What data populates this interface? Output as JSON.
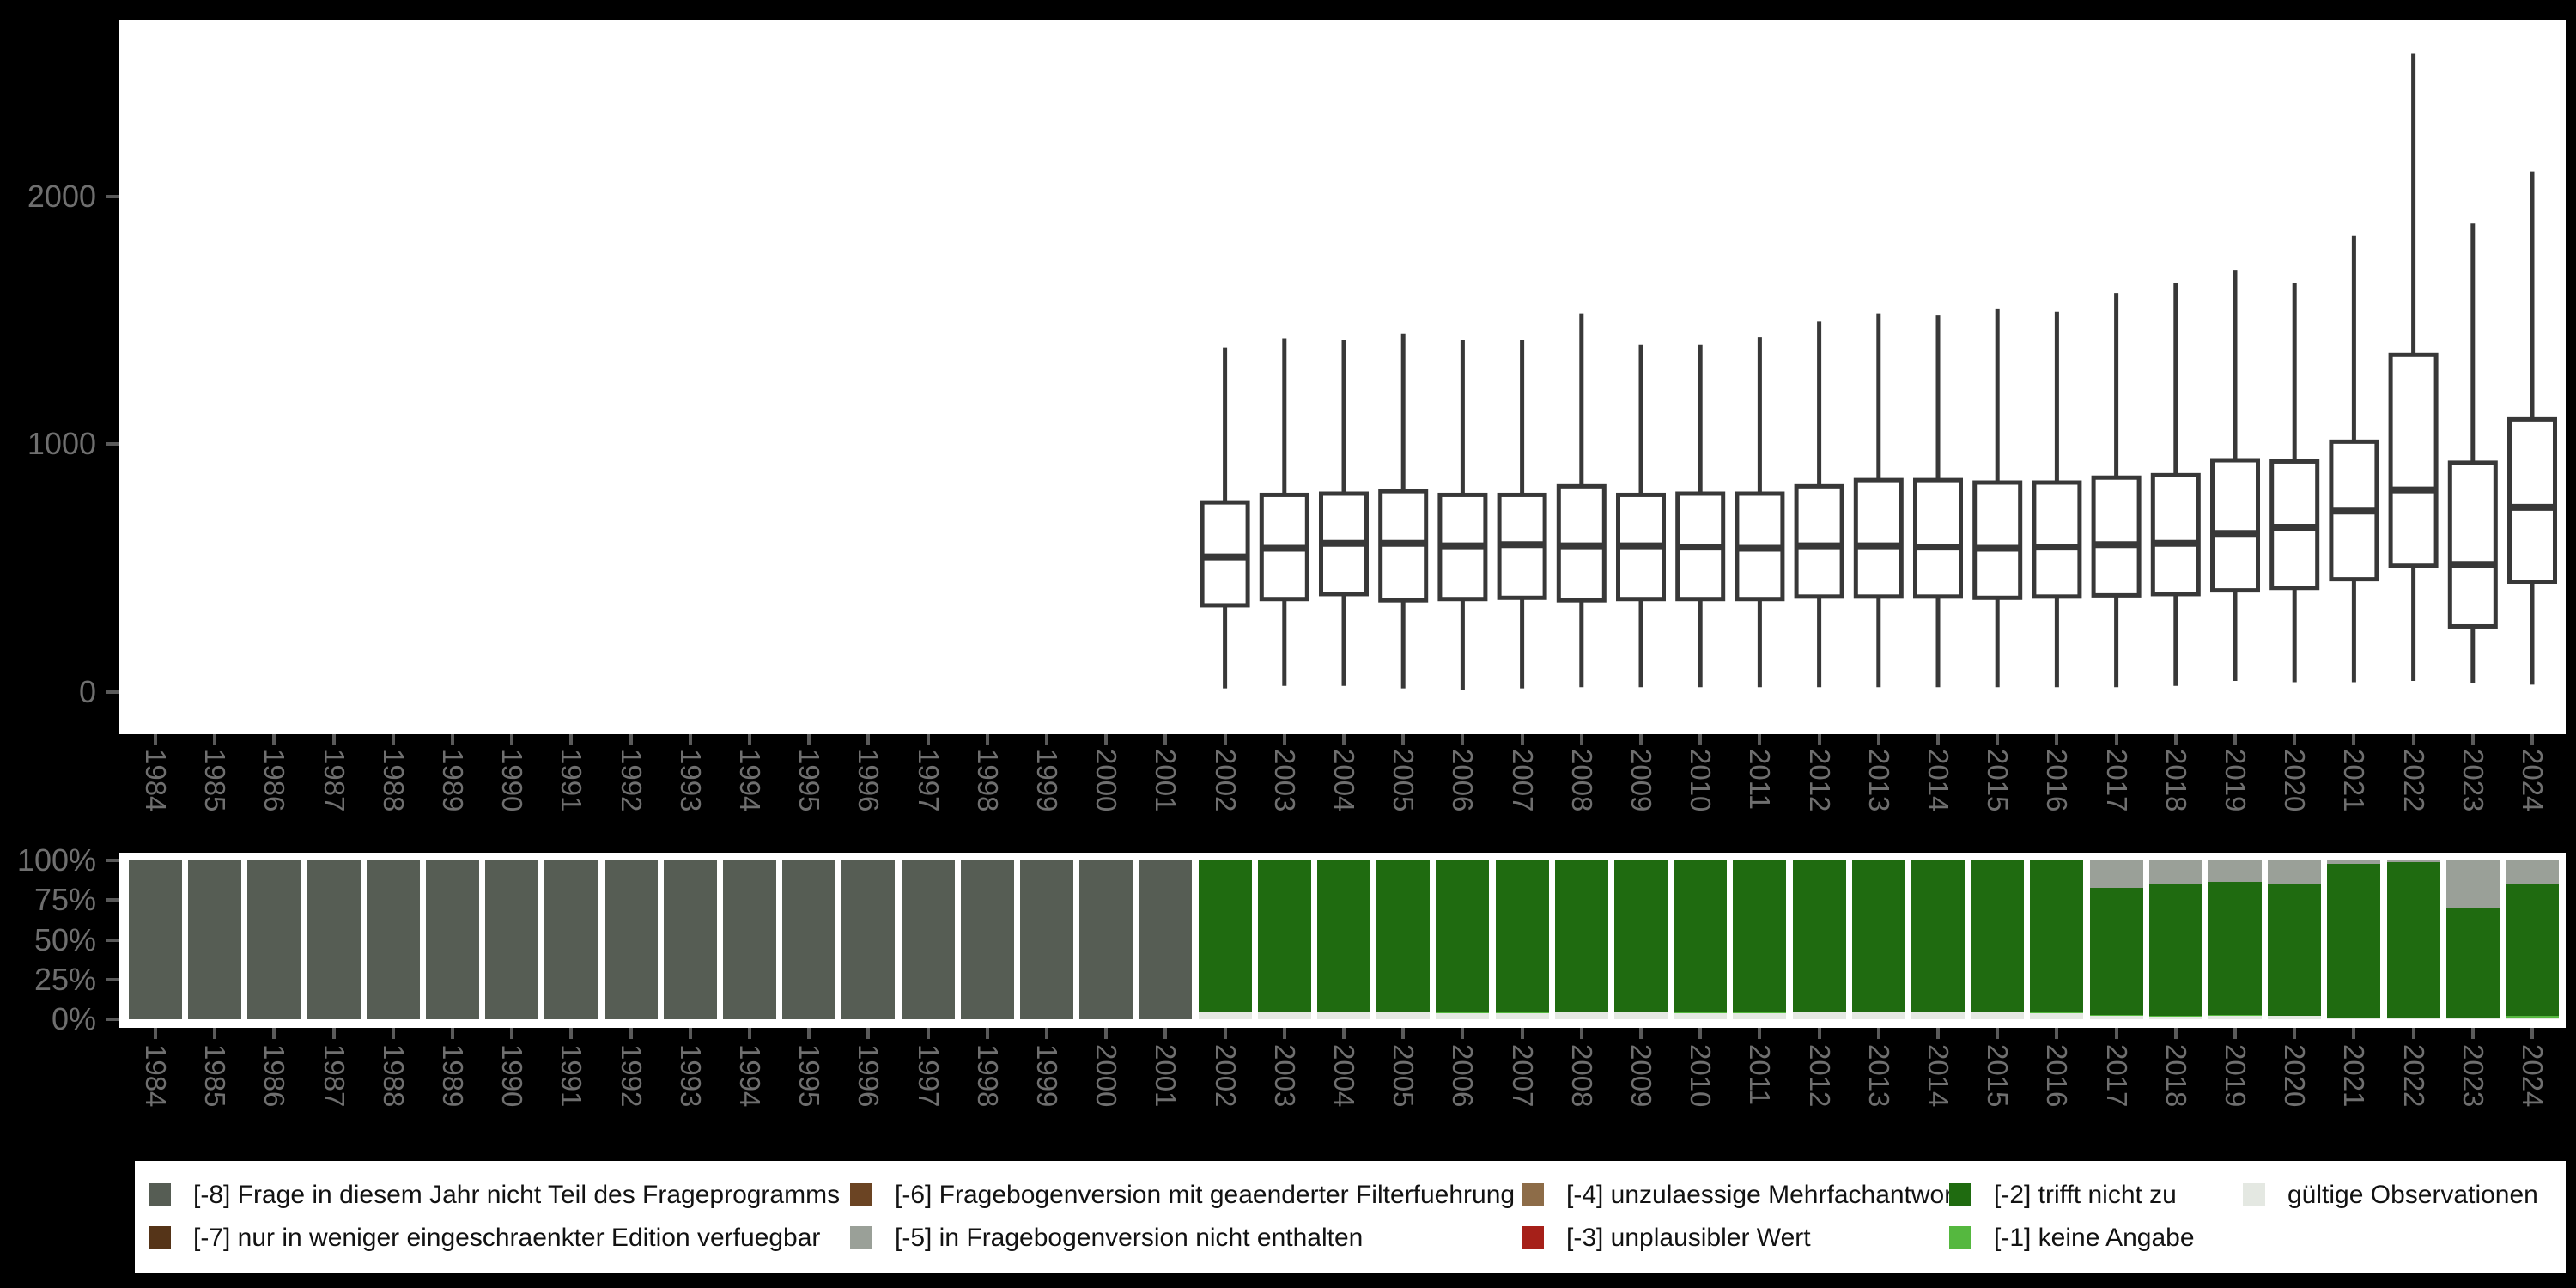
{
  "colors": {
    "background": "#000000",
    "panel": "#ffffff",
    "box_stroke": "#383838",
    "axis_label": "#6f6f6f",
    "tick": "#5a5a5a",
    "palette": {
      "-8": "#565d54",
      "-7": "#553418",
      "-6": "#6b4423",
      "-5": "#9aa098",
      "-4": "#8d6c48",
      "-3": "#a62019",
      "-2": "#1f6b10",
      "-1": "#55b83f",
      "valid": "#e4e8e2"
    }
  },
  "years": [
    "1984",
    "1985",
    "1986",
    "1987",
    "1988",
    "1989",
    "1990",
    "1991",
    "1992",
    "1993",
    "1994",
    "1995",
    "1996",
    "1997",
    "1998",
    "1999",
    "2000",
    "2001",
    "2002",
    "2003",
    "2004",
    "2005",
    "2006",
    "2007",
    "2008",
    "2009",
    "2010",
    "2011",
    "2012",
    "2013",
    "2014",
    "2015",
    "2016",
    "2017",
    "2018",
    "2019",
    "2020",
    "2021",
    "2022",
    "2023",
    "2024"
  ],
  "top_chart": {
    "y_ticks": [
      {
        "label": "0",
        "value": 0
      },
      {
        "label": "1000",
        "value": 1000
      },
      {
        "label": "2000",
        "value": 2000
      }
    ]
  },
  "bottom_chart": {
    "y_ticks": [
      {
        "label": "100%",
        "value": 100
      },
      {
        "label": "75%",
        "value": 75
      },
      {
        "label": "50%",
        "value": 50
      },
      {
        "label": "25%",
        "value": 25
      },
      {
        "label": "0%",
        "value": 0
      }
    ]
  },
  "chart_data": [
    {
      "type": "boxplot",
      "title": "",
      "xlabel": "",
      "ylabel": "",
      "ylim": [
        0,
        2700
      ],
      "y_tick_values": [
        0,
        1000,
        2000
      ],
      "note": "boxplots of valid observation values per survey year; no data 1984-2001",
      "series": [
        {
          "year": 2002,
          "low": 15,
          "q1": 350,
          "median": 545,
          "q3": 765,
          "high": 1390
        },
        {
          "year": 2003,
          "low": 25,
          "q1": 375,
          "median": 580,
          "q3": 795,
          "high": 1425
        },
        {
          "year": 2004,
          "low": 25,
          "q1": 395,
          "median": 600,
          "q3": 800,
          "high": 1420
        },
        {
          "year": 2005,
          "low": 15,
          "q1": 370,
          "median": 600,
          "q3": 810,
          "high": 1445
        },
        {
          "year": 2006,
          "low": 10,
          "q1": 375,
          "median": 590,
          "q3": 795,
          "high": 1420
        },
        {
          "year": 2007,
          "low": 15,
          "q1": 380,
          "median": 595,
          "q3": 795,
          "high": 1420
        },
        {
          "year": 2008,
          "low": 20,
          "q1": 370,
          "median": 590,
          "q3": 830,
          "high": 1525
        },
        {
          "year": 2009,
          "low": 20,
          "q1": 375,
          "median": 590,
          "q3": 795,
          "high": 1400
        },
        {
          "year": 2010,
          "low": 20,
          "q1": 375,
          "median": 585,
          "q3": 800,
          "high": 1400
        },
        {
          "year": 2011,
          "low": 20,
          "q1": 375,
          "median": 580,
          "q3": 800,
          "high": 1430
        },
        {
          "year": 2012,
          "low": 20,
          "q1": 385,
          "median": 590,
          "q3": 830,
          "high": 1495
        },
        {
          "year": 2013,
          "low": 20,
          "q1": 385,
          "median": 590,
          "q3": 855,
          "high": 1525
        },
        {
          "year": 2014,
          "low": 20,
          "q1": 385,
          "median": 585,
          "q3": 855,
          "high": 1520
        },
        {
          "year": 2015,
          "low": 20,
          "q1": 380,
          "median": 580,
          "q3": 845,
          "high": 1545
        },
        {
          "year": 2016,
          "low": 20,
          "q1": 385,
          "median": 585,
          "q3": 845,
          "high": 1535
        },
        {
          "year": 2017,
          "low": 20,
          "q1": 390,
          "median": 595,
          "q3": 865,
          "high": 1610
        },
        {
          "year": 2018,
          "low": 25,
          "q1": 395,
          "median": 600,
          "q3": 875,
          "high": 1650
        },
        {
          "year": 2019,
          "low": 45,
          "q1": 410,
          "median": 640,
          "q3": 935,
          "high": 1700
        },
        {
          "year": 2020,
          "low": 40,
          "q1": 420,
          "median": 665,
          "q3": 930,
          "high": 1650
        },
        {
          "year": 2021,
          "low": 40,
          "q1": 455,
          "median": 730,
          "q3": 1010,
          "high": 1840
        },
        {
          "year": 2022,
          "low": 45,
          "q1": 510,
          "median": 815,
          "q3": 1360,
          "high": 2575
        },
        {
          "year": 2023,
          "low": 35,
          "q1": 265,
          "median": 515,
          "q3": 925,
          "high": 1890
        },
        {
          "year": 2024,
          "low": 30,
          "q1": 445,
          "median": 745,
          "q3": 1100,
          "high": 2100
        }
      ]
    },
    {
      "type": "bar",
      "stacked": true,
      "unit": "percent",
      "title": "",
      "xlabel": "",
      "ylabel": "",
      "ylim": [
        0,
        100
      ],
      "y_tick_values": [
        0,
        25,
        50,
        75,
        100
      ],
      "note": "share of missing codes vs valid observations per year; segments listed bottom-to-top",
      "bars": [
        {
          "year": 1984,
          "segments": [
            {
              "code": "-8",
              "pct": 100
            }
          ]
        },
        {
          "year": 1985,
          "segments": [
            {
              "code": "-8",
              "pct": 100
            }
          ]
        },
        {
          "year": 1986,
          "segments": [
            {
              "code": "-8",
              "pct": 100
            }
          ]
        },
        {
          "year": 1987,
          "segments": [
            {
              "code": "-8",
              "pct": 100
            }
          ]
        },
        {
          "year": 1988,
          "segments": [
            {
              "code": "-8",
              "pct": 100
            }
          ]
        },
        {
          "year": 1989,
          "segments": [
            {
              "code": "-8",
              "pct": 100
            }
          ]
        },
        {
          "year": 1990,
          "segments": [
            {
              "code": "-8",
              "pct": 100
            }
          ]
        },
        {
          "year": 1991,
          "segments": [
            {
              "code": "-8",
              "pct": 100
            }
          ]
        },
        {
          "year": 1992,
          "segments": [
            {
              "code": "-8",
              "pct": 100
            }
          ]
        },
        {
          "year": 1993,
          "segments": [
            {
              "code": "-8",
              "pct": 100
            }
          ]
        },
        {
          "year": 1994,
          "segments": [
            {
              "code": "-8",
              "pct": 100
            }
          ]
        },
        {
          "year": 1995,
          "segments": [
            {
              "code": "-8",
              "pct": 100
            }
          ]
        },
        {
          "year": 1996,
          "segments": [
            {
              "code": "-8",
              "pct": 100
            }
          ]
        },
        {
          "year": 1997,
          "segments": [
            {
              "code": "-8",
              "pct": 100
            }
          ]
        },
        {
          "year": 1998,
          "segments": [
            {
              "code": "-8",
              "pct": 100
            }
          ]
        },
        {
          "year": 1999,
          "segments": [
            {
              "code": "-8",
              "pct": 100
            }
          ]
        },
        {
          "year": 2000,
          "segments": [
            {
              "code": "-8",
              "pct": 100
            }
          ]
        },
        {
          "year": 2001,
          "segments": [
            {
              "code": "-8",
              "pct": 100
            }
          ]
        },
        {
          "year": 2002,
          "segments": [
            {
              "code": "valid",
              "pct": 4.3
            },
            {
              "code": "-2",
              "pct": 95.7
            }
          ]
        },
        {
          "year": 2003,
          "segments": [
            {
              "code": "valid",
              "pct": 4.3
            },
            {
              "code": "-2",
              "pct": 95.7
            }
          ]
        },
        {
          "year": 2004,
          "segments": [
            {
              "code": "valid",
              "pct": 4.2
            },
            {
              "code": "-2",
              "pct": 95.8
            }
          ]
        },
        {
          "year": 2005,
          "segments": [
            {
              "code": "valid",
              "pct": 4.2
            },
            {
              "code": "-2",
              "pct": 95.8
            }
          ]
        },
        {
          "year": 2006,
          "segments": [
            {
              "code": "valid",
              "pct": 4.0
            },
            {
              "code": "-1",
              "pct": 0.7
            },
            {
              "code": "-2",
              "pct": 95.3
            }
          ]
        },
        {
          "year": 2007,
          "segments": [
            {
              "code": "valid",
              "pct": 4.0
            },
            {
              "code": "-1",
              "pct": 0.7
            },
            {
              "code": "-2",
              "pct": 95.3
            }
          ]
        },
        {
          "year": 2008,
          "segments": [
            {
              "code": "valid",
              "pct": 4.3
            },
            {
              "code": "-2",
              "pct": 95.7
            }
          ]
        },
        {
          "year": 2009,
          "segments": [
            {
              "code": "valid",
              "pct": 4.2
            },
            {
              "code": "-2",
              "pct": 95.8
            }
          ]
        },
        {
          "year": 2010,
          "segments": [
            {
              "code": "valid",
              "pct": 4.0
            },
            {
              "code": "-1",
              "pct": 0.6
            },
            {
              "code": "-2",
              "pct": 95.4
            }
          ]
        },
        {
          "year": 2011,
          "segments": [
            {
              "code": "valid",
              "pct": 4.0
            },
            {
              "code": "-1",
              "pct": 0.6
            },
            {
              "code": "-2",
              "pct": 95.4
            }
          ]
        },
        {
          "year": 2012,
          "segments": [
            {
              "code": "valid",
              "pct": 4.2
            },
            {
              "code": "-2",
              "pct": 95.8
            }
          ]
        },
        {
          "year": 2013,
          "segments": [
            {
              "code": "valid",
              "pct": 4.2
            },
            {
              "code": "-2",
              "pct": 95.8
            }
          ]
        },
        {
          "year": 2014,
          "segments": [
            {
              "code": "valid",
              "pct": 4.2
            },
            {
              "code": "-2",
              "pct": 95.8
            }
          ]
        },
        {
          "year": 2015,
          "segments": [
            {
              "code": "valid",
              "pct": 4.2
            },
            {
              "code": "-2",
              "pct": 95.8
            }
          ]
        },
        {
          "year": 2016,
          "segments": [
            {
              "code": "valid",
              "pct": 3.8
            },
            {
              "code": "-1",
              "pct": 0.6
            },
            {
              "code": "-2",
              "pct": 95.6
            }
          ]
        },
        {
          "year": 2017,
          "segments": [
            {
              "code": "valid",
              "pct": 2.0
            },
            {
              "code": "-1",
              "pct": 0.5
            },
            {
              "code": "-2",
              "pct": 80.0
            },
            {
              "code": "-5",
              "pct": 17.5
            }
          ]
        },
        {
          "year": 2018,
          "segments": [
            {
              "code": "valid",
              "pct": 2.0
            },
            {
              "code": "-1",
              "pct": 0.4
            },
            {
              "code": "-2",
              "pct": 82.8
            },
            {
              "code": "-5",
              "pct": 14.8
            }
          ]
        },
        {
          "year": 2019,
          "segments": [
            {
              "code": "valid",
              "pct": 2.0
            },
            {
              "code": "-1",
              "pct": 0.8
            },
            {
              "code": "-2",
              "pct": 83.9
            },
            {
              "code": "-5",
              "pct": 13.3
            }
          ]
        },
        {
          "year": 2020,
          "segments": [
            {
              "code": "valid",
              "pct": 2.0
            },
            {
              "code": "-2",
              "pct": 82.9
            },
            {
              "code": "-5",
              "pct": 15.1
            }
          ]
        },
        {
          "year": 2021,
          "segments": [
            {
              "code": "valid",
              "pct": 1.2
            },
            {
              "code": "-2",
              "pct": 96.8
            },
            {
              "code": "-5",
              "pct": 2.0
            }
          ]
        },
        {
          "year": 2022,
          "segments": [
            {
              "code": "valid",
              "pct": 0.8
            },
            {
              "code": "-2",
              "pct": 98.0
            },
            {
              "code": "-5",
              "pct": 1.2
            }
          ]
        },
        {
          "year": 2023,
          "segments": [
            {
              "code": "valid",
              "pct": 1.0
            },
            {
              "code": "-2",
              "pct": 68.9
            },
            {
              "code": "-5",
              "pct": 30.1
            }
          ]
        },
        {
          "year": 2024,
          "segments": [
            {
              "code": "valid",
              "pct": 1.3
            },
            {
              "code": "-1",
              "pct": 0.7
            },
            {
              "code": "-2",
              "pct": 83.0
            },
            {
              "code": "-5",
              "pct": 15.0
            }
          ]
        }
      ]
    }
  ],
  "legend": {
    "items": [
      {
        "row": 0,
        "col": 0,
        "code": "-8",
        "label": "[-8] Frage in diesem Jahr nicht Teil des Frageprogramms"
      },
      {
        "row": 1,
        "col": 0,
        "code": "-7",
        "label": "[-7] nur in weniger eingeschraenkter Edition verfuegbar"
      },
      {
        "row": 0,
        "col": 1,
        "code": "-6",
        "label": "[-6] Fragebogenversion mit geaenderter Filterfuehrung"
      },
      {
        "row": 1,
        "col": 1,
        "code": "-5",
        "label": "[-5] in Fragebogenversion nicht enthalten"
      },
      {
        "row": 0,
        "col": 2,
        "code": "-4",
        "label": "[-4] unzulaessige Mehrfachantwort"
      },
      {
        "row": 1,
        "col": 2,
        "code": "-3",
        "label": "[-3] unplausibler Wert"
      },
      {
        "row": 0,
        "col": 3,
        "code": "-2",
        "label": "[-2] trifft nicht zu"
      },
      {
        "row": 1,
        "col": 3,
        "code": "-1",
        "label": "[-1] keine Angabe"
      },
      {
        "row": 0,
        "col": 4,
        "code": "valid",
        "label": "gültige Observationen"
      }
    ]
  }
}
